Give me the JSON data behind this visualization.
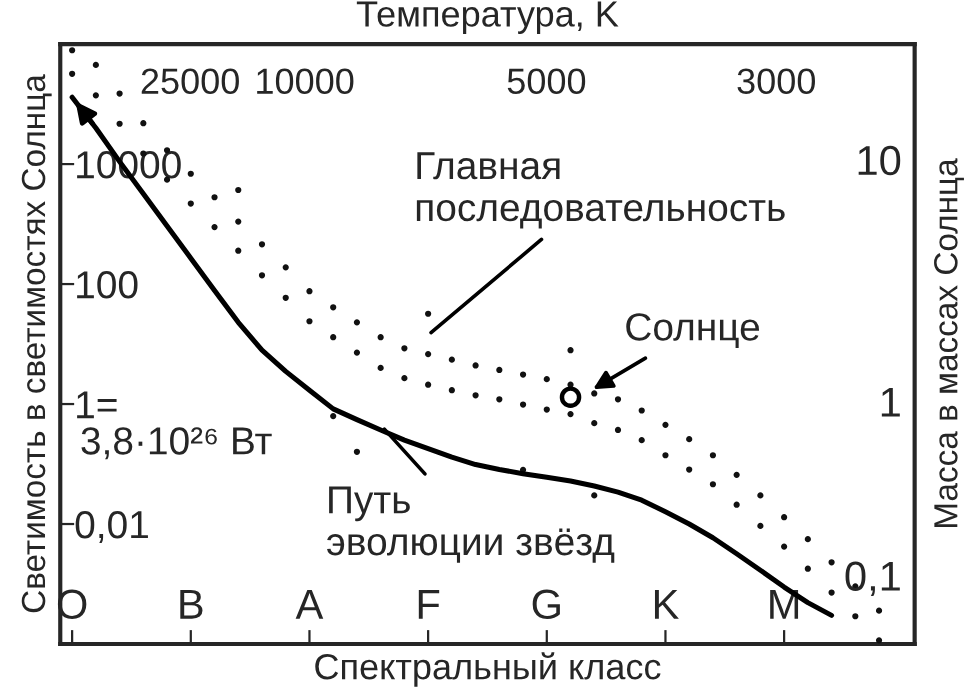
{
  "chart_data": {
    "type": "scatter",
    "xlabel": "Спектральный класс",
    "ylabel": "Светимость в светимостях Солнца",
    "y2label": "Масса в массах Солнца",
    "categories": [
      "O",
      null,
      null,
      null,
      null,
      "B",
      null,
      null,
      null,
      null,
      "A",
      null,
      null,
      null,
      null,
      "F",
      null,
      null,
      null,
      null,
      "G",
      null,
      null,
      null,
      null,
      "K",
      null,
      null,
      null,
      null,
      "M",
      null,
      null,
      null,
      null,
      null
    ],
    "log": "y",
    "ylim": [
      0.0001,
      1000000
    ],
    "yticks": [
      10000,
      100,
      {
        "value": 1,
        "label": "1="
      },
      {
        "value": 0.01,
        "label": "0,01"
      }
    ],
    "grid": false,
    "marker": "circle",
    "series": [
      {
        "color": "#111111",
        "values": [
          790000,
          450000,
          150000,
          48000,
          17000,
          6900,
          2800,
          1100,
          460,
          190,
          76,
          41,
          23,
          13,
          8.5,
          6.8,
          5.5,
          4.4,
          3.7,
          3.1,
          2.6,
          2.1,
          1.5,
          1.2,
          0.78,
          0.45,
          0.26,
          0.14,
          0.066,
          0.03,
          0.013,
          0.0056,
          0.0023,
          0.00091,
          0.00036,
          null
        ]
      },
      {
        "color": "#111111",
        "values": [
          320000,
          140000,
          47000,
          15000,
          5500,
          2200,
          890,
          360,
          140,
          59,
          24,
          13,
          7.2,
          4.0,
          2.7,
          2.1,
          1.7,
          1.4,
          1.2,
          0.98,
          0.81,
          0.68,
          0.48,
          0.37,
          0.25,
          0.14,
          0.081,
          0.046,
          0.021,
          0.0093,
          0.0042,
          0.0018,
          0.00072,
          0.00029,
          0.000115,
          null
        ]
      },
      {
        "color": "#111111",
        "values": [
          null,
          null,
          null,
          null,
          null,
          null,
          null,
          3700,
          null,
          null,
          null,
          0.63,
          0.16,
          null,
          null,
          32,
          null,
          null,
          null,
          0.08,
          null,
          7.9,
          0.03,
          null,
          null,
          null,
          null,
          null,
          null,
          null,
          null,
          null,
          null,
          null,
          null,
          null
        ]
      },
      {
        "type": "line",
        "color": "#000000",
        "line_style": "solid",
        "marker": "none",
        "values": [
          130000,
          40000,
          11000,
          3200,
          930,
          270,
          78,
          23,
          7.9,
          3.5,
          1.7,
          0.83,
          0.55,
          0.37,
          0.25,
          0.18,
          0.13,
          0.098,
          0.081,
          0.069,
          0.06,
          0.052,
          0.043,
          0.034,
          0.025,
          0.016,
          0.01,
          0.0059,
          0.0032,
          0.0017,
          0.00089,
          0.00049,
          0.0003,
          null,
          null,
          null
        ]
      },
      {
        "color": "#000000",
        "values": [
          null,
          null,
          null,
          null,
          null,
          null,
          null,
          null,
          null,
          null,
          null,
          null,
          null,
          null,
          null,
          null,
          null,
          null,
          null,
          null,
          null,
          1.3,
          null,
          null,
          null,
          null,
          null,
          null,
          null,
          null,
          null,
          null,
          null,
          null,
          null,
          null
        ]
      }
    ],
    "annotations": [
      "Главная\nпоследовательность",
      "Солнце",
      "Путь\nэволюции звёзд",
      "3,8·10²⁶ Вт",
      "25000",
      "10000",
      "5000",
      "3000",
      "Температура, K",
      "10",
      "1",
      "0,1"
    ]
  }
}
